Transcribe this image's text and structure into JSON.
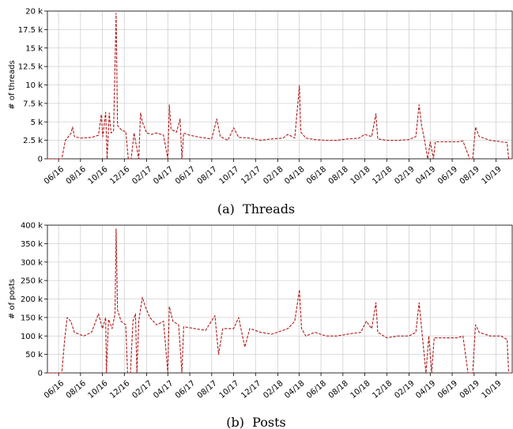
{
  "chart_data": [
    {
      "type": "line",
      "ylabel": "# of threads",
      "caption": "(a)  Threads",
      "ylim": [
        0,
        20000
      ],
      "yticks": [
        0,
        2500,
        5000,
        7500,
        10000,
        12500,
        15000,
        17500,
        20000
      ],
      "ytick_labels": [
        "0",
        "2.5 k",
        "5 k",
        "7.5 k",
        "10 k",
        "12.5 k",
        "15 k",
        "17.5 k",
        "20 k"
      ],
      "xlim": [
        "2016-05-01",
        "2019-11-15"
      ],
      "xtick_labels": [
        "06/16",
        "08/16",
        "10/16",
        "12/16",
        "02/17",
        "04/17",
        "06/17",
        "08/17",
        "10/17",
        "12/17",
        "02/18",
        "04/18",
        "06/18",
        "08/18",
        "10/18",
        "12/18",
        "02/19",
        "04/19",
        "06/19",
        "08/19",
        "10/19"
      ],
      "grid": true,
      "series": [
        {
          "color": "#b01c1c",
          "points": [
            [
              "2016-05-01",
              0
            ],
            [
              "2016-06-10",
              0
            ],
            [
              "2016-06-20",
              2500
            ],
            [
              "2016-07-05",
              3400
            ],
            [
              "2016-07-10",
              4300
            ],
            [
              "2016-07-15",
              3000
            ],
            [
              "2016-08-01",
              2800
            ],
            [
              "2016-09-01",
              2900
            ],
            [
              "2016-09-20",
              3200
            ],
            [
              "2016-09-28",
              6000
            ],
            [
              "2016-10-02",
              3000
            ],
            [
              "2016-10-10",
              6300
            ],
            [
              "2016-10-14",
              0
            ],
            [
              "2016-10-20",
              6200
            ],
            [
              "2016-10-25",
              3500
            ],
            [
              "2016-11-01",
              3800
            ],
            [
              "2016-11-08",
              19700
            ],
            [
              "2016-11-12",
              4500
            ],
            [
              "2016-11-25",
              3800
            ],
            [
              "2016-12-05",
              3700
            ],
            [
              "2016-12-12",
              0
            ],
            [
              "2016-12-20",
              0
            ],
            [
              "2016-12-28",
              3500
            ],
            [
              "2017-01-10",
              0
            ],
            [
              "2017-01-15",
              6200
            ],
            [
              "2017-01-20",
              5000
            ],
            [
              "2017-02-01",
              3500
            ],
            [
              "2017-02-15",
              3300
            ],
            [
              "2017-03-01",
              3500
            ],
            [
              "2017-03-20",
              3200
            ],
            [
              "2017-04-01",
              0
            ],
            [
              "2017-04-05",
              7300
            ],
            [
              "2017-04-10",
              4000
            ],
            [
              "2017-04-25",
              3600
            ],
            [
              "2017-05-05",
              5400
            ],
            [
              "2017-05-10",
              0
            ],
            [
              "2017-05-15",
              3500
            ],
            [
              "2017-06-01",
              3200
            ],
            [
              "2017-07-01",
              2900
            ],
            [
              "2017-08-01",
              2700
            ],
            [
              "2017-08-15",
              5400
            ],
            [
              "2017-08-25",
              3000
            ],
            [
              "2017-09-15",
              2500
            ],
            [
              "2017-10-01",
              4200
            ],
            [
              "2017-10-15",
              2900
            ],
            [
              "2017-11-15",
              2800
            ],
            [
              "2017-12-15",
              2500
            ],
            [
              "2018-01-15",
              2700
            ],
            [
              "2018-02-15",
              2800
            ],
            [
              "2018-03-01",
              3300
            ],
            [
              "2018-03-20",
              2800
            ],
            [
              "2018-04-02",
              9900
            ],
            [
              "2018-04-06",
              3600
            ],
            [
              "2018-04-20",
              2800
            ],
            [
              "2018-05-15",
              2600
            ],
            [
              "2018-06-15",
              2500
            ],
            [
              "2018-07-15",
              2500
            ],
            [
              "2018-08-15",
              2700
            ],
            [
              "2018-09-15",
              2800
            ],
            [
              "2018-10-01",
              3300
            ],
            [
              "2018-10-20",
              3000
            ],
            [
              "2018-11-01",
              6100
            ],
            [
              "2018-11-06",
              2700
            ],
            [
              "2018-12-01",
              2500
            ],
            [
              "2019-01-01",
              2500
            ],
            [
              "2019-02-01",
              2600
            ],
            [
              "2019-02-20",
              3000
            ],
            [
              "2019-03-01",
              7300
            ],
            [
              "2019-03-08",
              4500
            ],
            [
              "2019-03-15",
              2800
            ],
            [
              "2019-03-25",
              0
            ],
            [
              "2019-04-01",
              2300
            ],
            [
              "2019-04-10",
              0
            ],
            [
              "2019-04-15",
              2300
            ],
            [
              "2019-05-15",
              2300
            ],
            [
              "2019-06-15",
              2300
            ],
            [
              "2019-07-01",
              2400
            ],
            [
              "2019-07-20",
              0
            ],
            [
              "2019-07-28",
              0
            ],
            [
              "2019-08-05",
              4300
            ],
            [
              "2019-08-15",
              3000
            ],
            [
              "2019-09-15",
              2500
            ],
            [
              "2019-10-15",
              2300
            ],
            [
              "2019-11-01",
              2200
            ],
            [
              "2019-11-05",
              0
            ],
            [
              "2019-11-15",
              0
            ]
          ]
        }
      ]
    },
    {
      "type": "line",
      "ylabel": "# of posts",
      "caption": "(b)  Posts",
      "ylim": [
        0,
        400000
      ],
      "yticks": [
        0,
        50000,
        100000,
        150000,
        200000,
        250000,
        300000,
        350000,
        400000
      ],
      "ytick_labels": [
        "0",
        "50 k",
        "100 k",
        "150 k",
        "200 k",
        "250 k",
        "300 k",
        "350 k",
        "400 k"
      ],
      "xlim": [
        "2016-05-01",
        "2019-11-15"
      ],
      "xtick_labels": [
        "06/16",
        "08/16",
        "10/16",
        "12/16",
        "02/17",
        "04/17",
        "06/17",
        "08/17",
        "10/17",
        "12/17",
        "02/18",
        "04/18",
        "06/18",
        "08/18",
        "10/18",
        "12/18",
        "02/19",
        "04/19",
        "06/19",
        "08/19",
        "10/19"
      ],
      "grid": true,
      "series": [
        {
          "color": "#b01c1c",
          "points": [
            [
              "2016-05-01",
              0
            ],
            [
              "2016-06-10",
              0
            ],
            [
              "2016-06-18",
              90000
            ],
            [
              "2016-06-25",
              150000
            ],
            [
              "2016-07-05",
              140000
            ],
            [
              "2016-07-15",
              110000
            ],
            [
              "2016-08-10",
              100000
            ],
            [
              "2016-09-01",
              110000
            ],
            [
              "2016-09-20",
              160000
            ],
            [
              "2016-10-01",
              120000
            ],
            [
              "2016-10-10",
              150000
            ],
            [
              "2016-10-12",
              0
            ],
            [
              "2016-10-18",
              145000
            ],
            [
              "2016-10-28",
              120000
            ],
            [
              "2016-11-05",
              160000
            ],
            [
              "2016-11-08",
              390000
            ],
            [
              "2016-11-12",
              170000
            ],
            [
              "2016-11-22",
              140000
            ],
            [
              "2016-12-05",
              130000
            ],
            [
              "2016-12-10",
              0
            ],
            [
              "2016-12-18",
              0
            ],
            [
              "2016-12-25",
              140000
            ],
            [
              "2017-01-01",
              160000
            ],
            [
              "2017-01-05",
              0
            ],
            [
              "2017-01-10",
              140000
            ],
            [
              "2017-01-20",
              205000
            ],
            [
              "2017-01-28",
              180000
            ],
            [
              "2017-02-10",
              150000
            ],
            [
              "2017-03-01",
              130000
            ],
            [
              "2017-03-20",
              140000
            ],
            [
              "2017-04-01",
              0
            ],
            [
              "2017-04-05",
              180000
            ],
            [
              "2017-04-15",
              140000
            ],
            [
              "2017-05-01",
              130000
            ],
            [
              "2017-05-10",
              0
            ],
            [
              "2017-05-15",
              125000
            ],
            [
              "2017-06-15",
              120000
            ],
            [
              "2017-07-15",
              115000
            ],
            [
              "2017-08-10",
              155000
            ],
            [
              "2017-08-20",
              50000
            ],
            [
              "2017-09-01",
              120000
            ],
            [
              "2017-10-01",
              120000
            ],
            [
              "2017-10-15",
              150000
            ],
            [
              "2017-11-01",
              70000
            ],
            [
              "2017-11-15",
              120000
            ],
            [
              "2017-12-15",
              110000
            ],
            [
              "2018-01-15",
              105000
            ],
            [
              "2018-02-15",
              115000
            ],
            [
              "2018-03-01",
              120000
            ],
            [
              "2018-03-20",
              140000
            ],
            [
              "2018-04-02",
              225000
            ],
            [
              "2018-04-08",
              120000
            ],
            [
              "2018-04-20",
              100000
            ],
            [
              "2018-05-15",
              110000
            ],
            [
              "2018-06-15",
              100000
            ],
            [
              "2018-07-15",
              100000
            ],
            [
              "2018-08-15",
              105000
            ],
            [
              "2018-09-20",
              110000
            ],
            [
              "2018-10-05",
              140000
            ],
            [
              "2018-10-20",
              120000
            ],
            [
              "2018-11-01",
              190000
            ],
            [
              "2018-11-06",
              110000
            ],
            [
              "2018-12-01",
              95000
            ],
            [
              "2019-01-01",
              100000
            ],
            [
              "2019-02-01",
              100000
            ],
            [
              "2019-02-20",
              110000
            ],
            [
              "2019-03-01",
              190000
            ],
            [
              "2019-03-08",
              120000
            ],
            [
              "2019-03-20",
              0
            ],
            [
              "2019-03-28",
              100000
            ],
            [
              "2019-04-05",
              0
            ],
            [
              "2019-04-12",
              95000
            ],
            [
              "2019-05-15",
              95000
            ],
            [
              "2019-06-15",
              95000
            ],
            [
              "2019-07-01",
              100000
            ],
            [
              "2019-07-15",
              0
            ],
            [
              "2019-07-28",
              0
            ],
            [
              "2019-08-05",
              130000
            ],
            [
              "2019-08-15",
              110000
            ],
            [
              "2019-09-15",
              100000
            ],
            [
              "2019-10-15",
              100000
            ],
            [
              "2019-11-01",
              90000
            ],
            [
              "2019-11-05",
              0
            ],
            [
              "2019-11-15",
              0
            ]
          ]
        }
      ]
    }
  ]
}
